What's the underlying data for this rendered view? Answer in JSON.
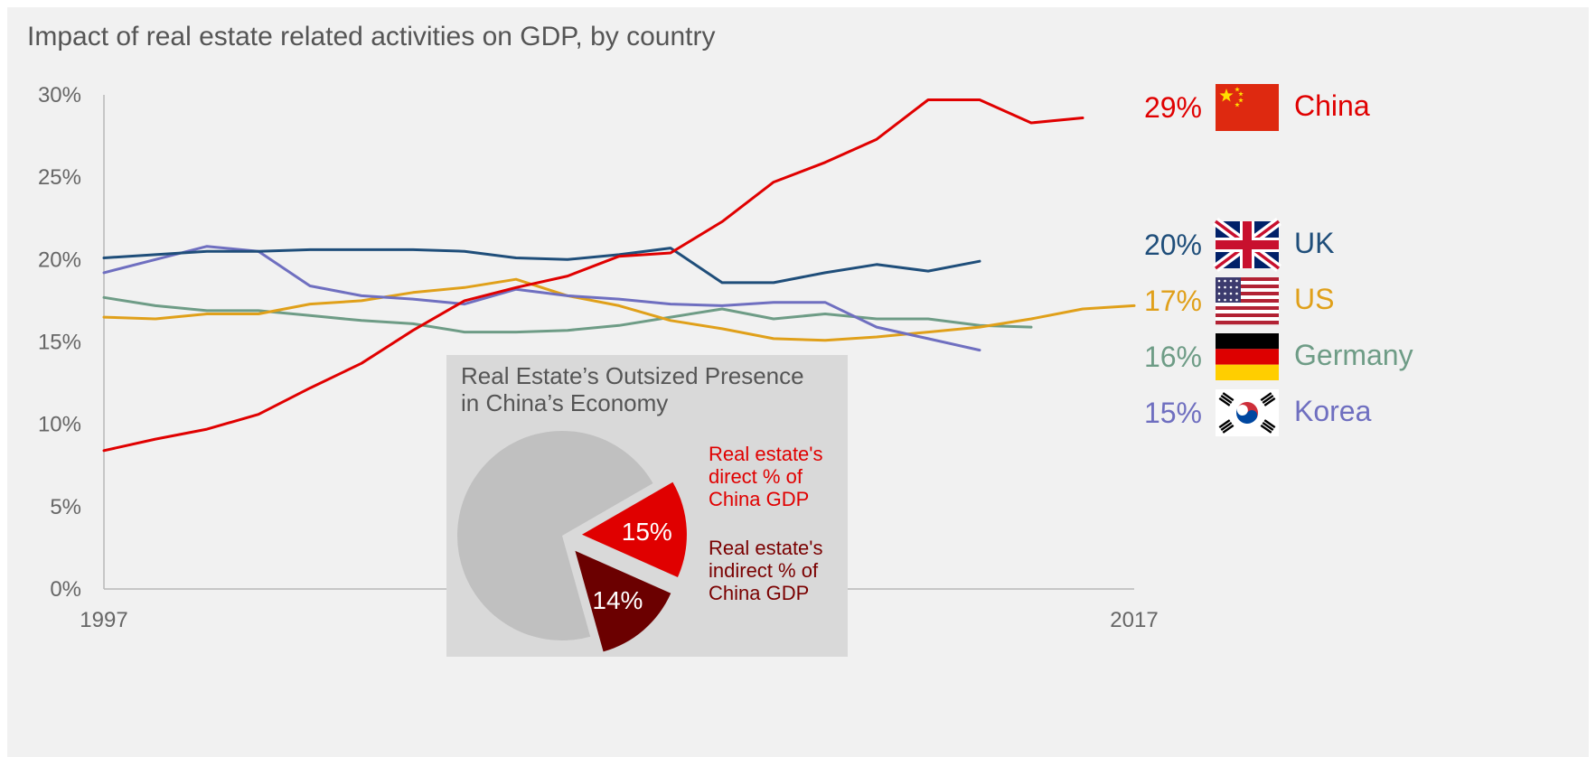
{
  "title": "Impact of real estate related activities on GDP, by country",
  "chart_data": {
    "type": "line",
    "title": "Impact of real estate related activities on GDP, by country",
    "xlabel": "",
    "ylabel": "",
    "x_tick_labels": [
      "1997",
      "2017"
    ],
    "y_tick_labels": [
      "0%",
      "5%",
      "10%",
      "15%",
      "20%",
      "25%",
      "30%"
    ],
    "ylim": [
      0,
      30
    ],
    "xlim": [
      1997,
      2017
    ],
    "grid": false,
    "series": [
      {
        "name": "China",
        "color": "#e00000",
        "end_label": "29%",
        "x": [
          1997,
          1998,
          1999,
          2000,
          2001,
          2002,
          2003,
          2004,
          2005,
          2006,
          2007,
          2008,
          2009,
          2010,
          2011,
          2012,
          2013,
          2014,
          2015,
          2016
        ],
        "values": [
          8.4,
          9.1,
          9.7,
          10.6,
          12.2,
          13.7,
          15.7,
          17.5,
          18.3,
          19.0,
          20.2,
          20.4,
          22.3,
          24.7,
          25.9,
          27.3,
          29.7,
          29.7,
          28.3,
          28.6
        ]
      },
      {
        "name": "UK",
        "color": "#1f4e7a",
        "end_label": "20%",
        "x": [
          1997,
          1998,
          1999,
          2000,
          2001,
          2002,
          2003,
          2004,
          2005,
          2006,
          2007,
          2008,
          2009,
          2010,
          2011,
          2012,
          2013,
          2014
        ],
        "values": [
          20.1,
          20.3,
          20.5,
          20.5,
          20.6,
          20.6,
          20.6,
          20.5,
          20.1,
          20.0,
          20.3,
          20.7,
          18.6,
          18.6,
          19.2,
          19.7,
          19.3,
          19.9
        ]
      },
      {
        "name": "US",
        "color": "#e0a01a",
        "end_label": "17%",
        "x": [
          1997,
          1998,
          1999,
          2000,
          2001,
          2002,
          2003,
          2004,
          2005,
          2006,
          2007,
          2008,
          2009,
          2010,
          2011,
          2012,
          2013,
          2014,
          2015,
          2016,
          2017
        ],
        "values": [
          16.5,
          16.4,
          16.7,
          16.7,
          17.3,
          17.5,
          18.0,
          18.3,
          18.8,
          17.8,
          17.2,
          16.3,
          15.8,
          15.2,
          15.1,
          15.3,
          15.6,
          15.9,
          16.4,
          17.0,
          17.2
        ]
      },
      {
        "name": "Germany",
        "color": "#6e9c86",
        "end_label": "16%",
        "x": [
          1997,
          1998,
          1999,
          2000,
          2001,
          2002,
          2003,
          2004,
          2005,
          2006,
          2007,
          2008,
          2009,
          2010,
          2011,
          2012,
          2013,
          2014,
          2015
        ],
        "values": [
          17.7,
          17.2,
          16.9,
          16.9,
          16.6,
          16.3,
          16.1,
          15.6,
          15.6,
          15.7,
          16.0,
          16.5,
          17.0,
          16.4,
          16.7,
          16.4,
          16.4,
          16.0,
          15.9
        ]
      },
      {
        "name": "Korea",
        "color": "#6f6fc0",
        "end_label": "15%",
        "x": [
          1997,
          1998,
          1999,
          2000,
          2001,
          2002,
          2003,
          2004,
          2005,
          2006,
          2007,
          2008,
          2009,
          2010,
          2011,
          2012,
          2013,
          2014
        ],
        "values": [
          19.2,
          20.0,
          20.8,
          20.5,
          18.4,
          17.8,
          17.6,
          17.3,
          18.2,
          17.8,
          17.6,
          17.3,
          17.2,
          17.4,
          17.4,
          15.9,
          15.2,
          14.5
        ]
      }
    ],
    "inset": {
      "type": "pie",
      "title_lines": [
        "Real Estate’s Outsized Presence",
        "in China’s Economy"
      ],
      "slices": [
        {
          "value": 15,
          "label": "15%",
          "text_lines": [
            "Real estate's",
            "direct % of",
            "China GDP"
          ],
          "color": "#e00000",
          "text_color": "#e00000"
        },
        {
          "value": 14,
          "label": "14%",
          "text_lines": [
            "Real estate's",
            "indirect % of",
            "China GDP"
          ],
          "color": "#6b0000",
          "text_color": "#7a0000"
        },
        {
          "value": 71,
          "label": "",
          "text_lines": [],
          "color": "#c0c0c0",
          "text_color": "#c0c0c0"
        }
      ]
    }
  }
}
